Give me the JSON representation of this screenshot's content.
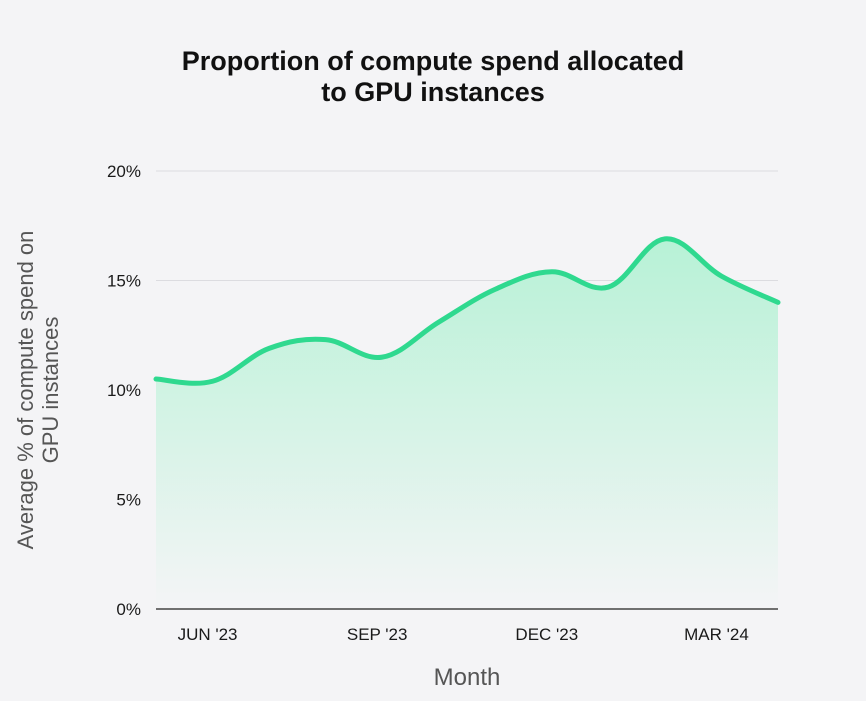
{
  "chart_data": {
    "type": "area",
    "title_lines": [
      "Proportion of compute spend allocated",
      "to GPU instances"
    ],
    "xlabel": "Month",
    "ylabel_lines": [
      "Average % of compute spend on",
      "GPU instances"
    ],
    "x_tick_labels": [
      "JUN '23",
      "SEP '23",
      "DEC '23",
      "MAR '24"
    ],
    "y_tick_labels": [
      "0%",
      "5%",
      "10%",
      "15%",
      "20%"
    ],
    "y_ticks": [
      0,
      5,
      10,
      15,
      20
    ],
    "ylim": [
      0,
      20
    ],
    "x": [
      "May '23",
      "Jun '23",
      "Jul '23",
      "Aug '23",
      "Sep '23",
      "Oct '23",
      "Nov '23",
      "Dec '23",
      "Jan '24",
      "Feb '24",
      "Mar '24",
      "Apr '24"
    ],
    "values": [
      10.5,
      10.4,
      11.9,
      12.3,
      11.5,
      13.1,
      14.6,
      15.4,
      14.7,
      16.9,
      15.2,
      14.0
    ],
    "grid": true,
    "colors": {
      "line": "#2fd98f",
      "fill_top": "#b7f2d6",
      "fill_bottom": "#f4f4f6",
      "grid": "#dcdce0",
      "axis": "#444444",
      "text": "#1a1a1a"
    }
  }
}
